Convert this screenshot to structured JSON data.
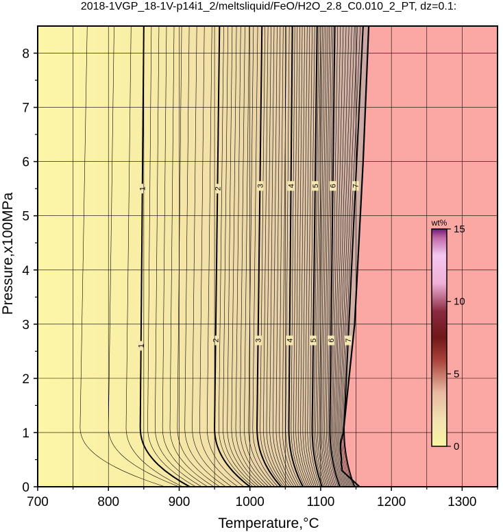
{
  "chart_data": {
    "type": "heatmap",
    "title": "2018-1VGP_18-1V-p14i1_2/meltsliquid/FeO/H2O_2.8_C0.010_2_PT, dz=0.1:",
    "xlabel": "Temperature,°C",
    "ylabel": "Pressure,x100MPa",
    "xlim": [
      700,
      1350
    ],
    "ylim": [
      0,
      8.5
    ],
    "xticks": [
      "700",
      "800",
      "900",
      "1000",
      "1100",
      "1200",
      "1300"
    ],
    "yticks": [
      "0",
      "1",
      "2",
      "3",
      "4",
      "5",
      "6",
      "7",
      "8"
    ],
    "grid": true,
    "colorbar": {
      "unit": "wt%",
      "range": [
        0,
        15
      ],
      "ticks": [
        "0",
        "5",
        "10",
        "15"
      ],
      "placement": "right-inside"
    },
    "no_data_color": "#fba8a4",
    "contour_interval": 0.1,
    "major_contours": [
      {
        "level": "1",
        "x_low": 845,
        "x_high": 850,
        "x_base": 915,
        "label_p": [
          5.5,
          2.6
        ]
      },
      {
        "level": "2",
        "x_low": 950,
        "x_high": 957,
        "x_base": 1000,
        "label_p": [
          5.5,
          2.7
        ]
      },
      {
        "level": "3",
        "x_low": 1010,
        "x_high": 1017,
        "x_base": 1044,
        "label_p": [
          5.55,
          2.7
        ]
      },
      {
        "level": "4",
        "x_low": 1055,
        "x_high": 1060,
        "x_base": 1075,
        "label_p": [
          5.55,
          2.7
        ]
      },
      {
        "level": "5",
        "x_low": 1088,
        "x_high": 1095,
        "x_base": 1102,
        "label_p": [
          5.55,
          2.7
        ]
      },
      {
        "level": "6",
        "x_low": 1113,
        "x_high": 1120,
        "x_base": 1127,
        "label_p": [
          5.55,
          2.7
        ]
      },
      {
        "level": "7",
        "x_low": 1133,
        "x_high": 1160,
        "x_base": 1148,
        "label_p": [
          5.55,
          2.7
        ]
      }
    ],
    "melt_boundary": [
      [
        1155,
        0
      ],
      [
        1130,
        0.3
      ],
      [
        1128,
        0.8
      ],
      [
        1132,
        1.0
      ],
      [
        1148,
        3.0
      ],
      [
        1160,
        6.0
      ],
      [
        1168,
        8.5
      ]
    ],
    "colors": {
      "low": "#fcf6a6",
      "mid": "#ead2aa",
      "high": "#d0b0a6",
      "contour": "#000000"
    }
  }
}
